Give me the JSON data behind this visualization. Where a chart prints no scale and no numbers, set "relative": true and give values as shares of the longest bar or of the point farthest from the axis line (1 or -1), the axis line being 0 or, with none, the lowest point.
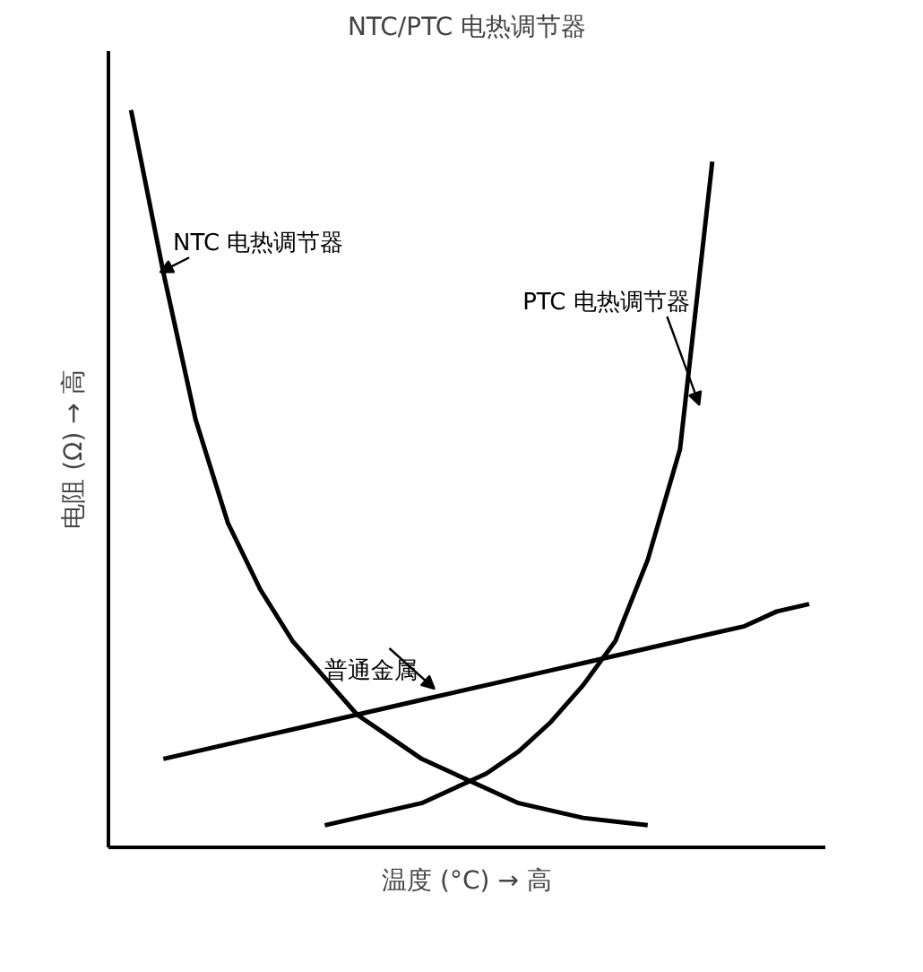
{
  "chart_data": {
    "type": "line",
    "title": "NTC/PTC 电热调节器",
    "xlabel": "温度 (°C) → 高",
    "ylabel": "电阻 (Ω) → 高",
    "relative": true,
    "grid": false,
    "categories": [
      null,
      null,
      null,
      null,
      null,
      null,
      null,
      null,
      null,
      null,
      null,
      null,
      null,
      null,
      null,
      null,
      null,
      null,
      null,
      null,
      null,
      null
    ],
    "series": [
      {
        "name": "NTC 电热调节器",
        "color": "#000000",
        "values": [
          1.0,
          0.78,
          0.58,
          0.44,
          0.35,
          0.28,
          0.23,
          0.18,
          0.15,
          0.12,
          0.1,
          0.08,
          0.06,
          0.05,
          0.04,
          0.035,
          0.03,
          null,
          null,
          null,
          null,
          null
        ]
      },
      {
        "name": "PTC 电热调节器",
        "color": "#000000",
        "values": [
          null,
          null,
          null,
          null,
          null,
          null,
          0.03,
          0.04,
          0.05,
          0.06,
          0.08,
          0.1,
          0.13,
          0.17,
          0.22,
          0.28,
          0.39,
          0.54,
          0.93,
          null,
          null,
          null
        ]
      },
      {
        "name": "普通金属",
        "color": "#000000",
        "values": [
          null,
          0.12,
          0.13,
          0.14,
          0.15,
          0.16,
          0.17,
          0.18,
          0.19,
          0.2,
          0.21,
          0.22,
          0.23,
          0.24,
          0.25,
          0.26,
          0.27,
          0.28,
          0.29,
          0.3,
          0.32,
          0.33
        ]
      }
    ]
  }
}
